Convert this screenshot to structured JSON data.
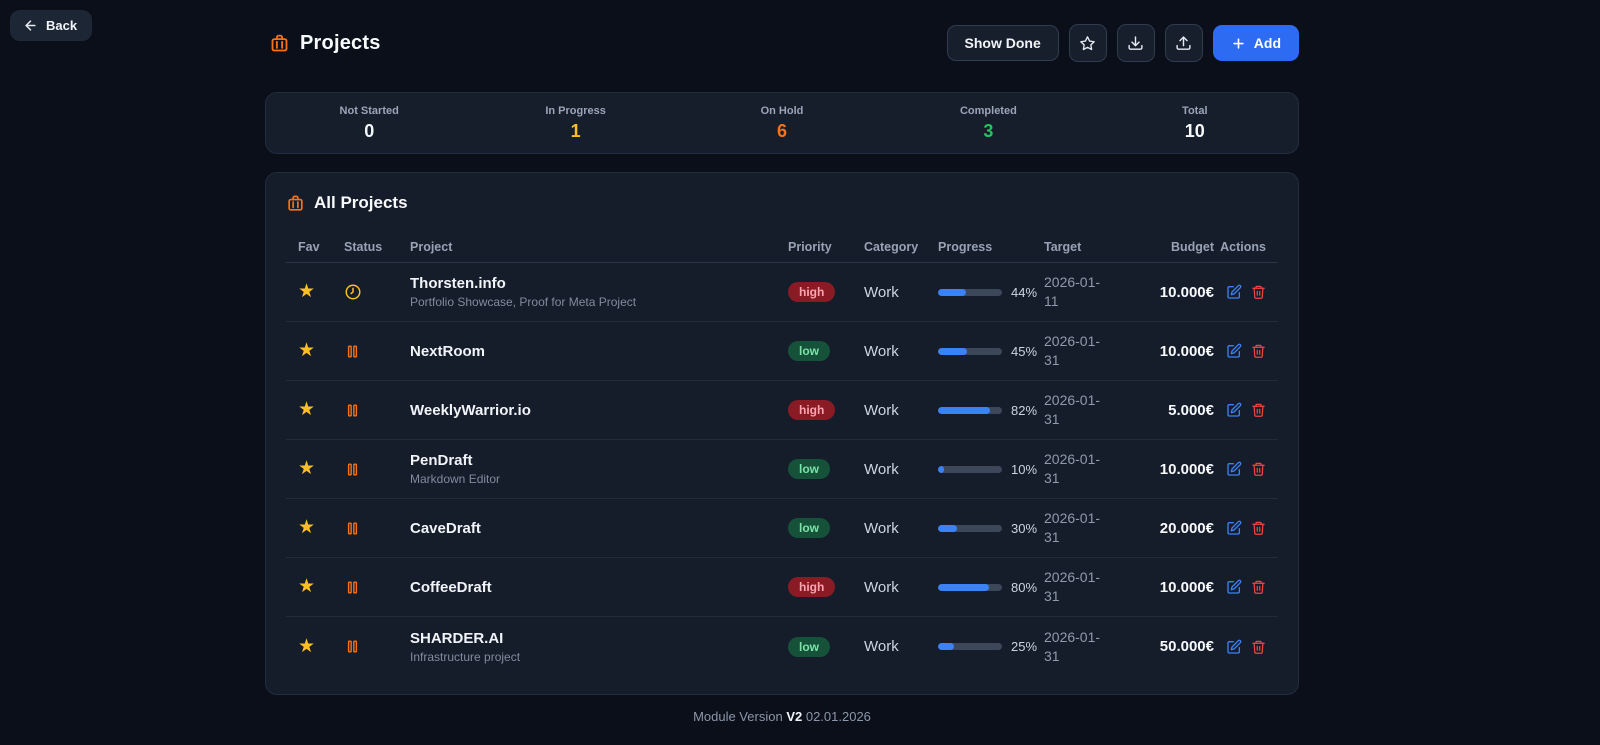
{
  "back": {
    "label": "Back"
  },
  "header": {
    "title": "Projects",
    "show_done_label": "Show Done",
    "add_label": "Add"
  },
  "colors": {
    "accent_orange": "#f97316",
    "accent_yellow": "#fbbf24",
    "accent_green": "#22c55e",
    "accent_blue": "#3b82f6",
    "add_button_blue": "#2c6bf2",
    "edit_icon_blue": "#3b82f6",
    "delete_icon_red": "#ef4444",
    "badge_high_bg": "#8a1b25",
    "badge_high_text": "#fda4af",
    "badge_low_bg": "#155239",
    "badge_low_text": "#7ee2a8"
  },
  "stats": [
    {
      "label": "Not Started",
      "value": "0",
      "color": "#f1f5f9"
    },
    {
      "label": "In Progress",
      "value": "1",
      "color": "#fbbf24"
    },
    {
      "label": "On Hold",
      "value": "6",
      "color": "#f97316"
    },
    {
      "label": "Completed",
      "value": "3",
      "color": "#22c55e"
    },
    {
      "label": "Total",
      "value": "10",
      "color": "#f8fafc"
    }
  ],
  "table": {
    "title": "All Projects",
    "columns": [
      "Fav",
      "Status",
      "Project",
      "Priority",
      "Category",
      "Progress",
      "Target",
      "Budget",
      "Actions"
    ],
    "rows": [
      {
        "fav": true,
        "status": "in-progress",
        "name": "Thorsten.info",
        "description": "Portfolio Showcase, Proof for Meta Project",
        "priority": "high",
        "category": "Work",
        "progress": 44,
        "progress_label": "44%",
        "target": "2026-01-11",
        "budget": "10.000€"
      },
      {
        "fav": true,
        "status": "on-hold",
        "name": "NextRoom",
        "description": "",
        "priority": "low",
        "category": "Work",
        "progress": 45,
        "progress_label": "45%",
        "target": "2026-01-31",
        "budget": "10.000€"
      },
      {
        "fav": true,
        "status": "on-hold",
        "name": "WeeklyWarrior.io",
        "description": "",
        "priority": "high",
        "category": "Work",
        "progress": 82,
        "progress_label": "82%",
        "target": "2026-01-31",
        "budget": "5.000€"
      },
      {
        "fav": true,
        "status": "on-hold",
        "name": "PenDraft",
        "description": "Markdown Editor",
        "priority": "low",
        "category": "Work",
        "progress": 10,
        "progress_label": "10%",
        "target": "2026-01-31",
        "budget": "10.000€"
      },
      {
        "fav": true,
        "status": "on-hold",
        "name": "CaveDraft",
        "description": "",
        "priority": "low",
        "category": "Work",
        "progress": 30,
        "progress_label": "30%",
        "target": "2026-01-31",
        "budget": "20.000€"
      },
      {
        "fav": true,
        "status": "on-hold",
        "name": "CoffeeDraft",
        "description": "",
        "priority": "high",
        "category": "Work",
        "progress": 80,
        "progress_label": "80%",
        "target": "2026-01-31",
        "budget": "10.000€"
      },
      {
        "fav": true,
        "status": "on-hold",
        "name": "SHARDER.AI",
        "description": "Infrastructure project",
        "priority": "low",
        "category": "Work",
        "progress": 25,
        "progress_label": "25%",
        "target": "2026-01-31",
        "budget": "50.000€"
      }
    ]
  },
  "footer": {
    "prefix": "Module Version",
    "version": "V2",
    "date": "02.01.2026"
  }
}
